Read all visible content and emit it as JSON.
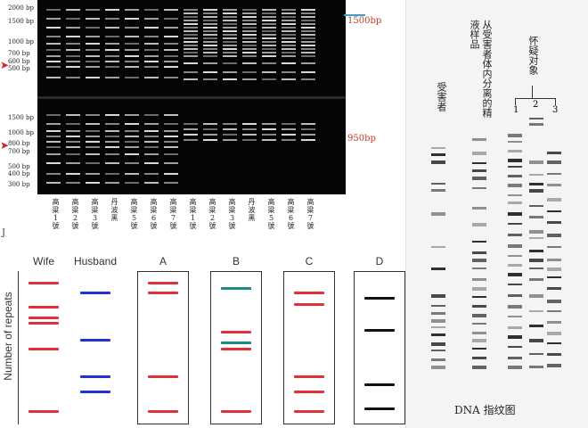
{
  "gel": {
    "size_labels_top": [
      "2000 bp",
      "1500 bp",
      "1000 bp",
      "700 bp",
      "600 bp",
      "500 bp"
    ],
    "size_labels_bottom": [
      "1500 bp",
      "1000 bp",
      "800 bp",
      "700 bp",
      "500 bp",
      "400 bp",
      "300 bp"
    ],
    "marker_top": "1500bp",
    "marker_bottom": "950bp",
    "lane_labels": [
      "高粱1號",
      "高粱2號",
      "高粱3號",
      "丹波黑",
      "高粱5號",
      "高粱6號",
      "高粱7號",
      "高粱1號",
      "高粱2號",
      "高粱3號",
      "丹波黑",
      "高粱5號",
      "高粱6號",
      "高粱7號"
    ],
    "corner_mark": "J"
  },
  "fingerprint": {
    "label_victim": "受害者",
    "label_sample": "从受害者体内分离的精液样品",
    "label_suspects": "怀疑对象",
    "suspect_numbers": [
      "1",
      "2",
      "3"
    ],
    "caption": "DNA 指纹图"
  },
  "repeats": {
    "ylabel": "Number of repeats",
    "columns": [
      {
        "name": "Wife",
        "color": "#e0303a",
        "bands": [
          0.04,
          0.21,
          0.29,
          0.33,
          0.51,
          0.96
        ]
      },
      {
        "name": "Husband",
        "color": "#2430d8",
        "bands": [
          0.11,
          0.45,
          0.71,
          0.82
        ]
      },
      {
        "name": "A",
        "color": "#e0303a",
        "bands": [
          0.04,
          0.11,
          0.71,
          0.96
        ]
      },
      {
        "name": "B",
        "color": "#e0303a",
        "bands": [
          0.08,
          0.39,
          0.51,
          0.96
        ],
        "alt_color": "#1e8c85",
        "alt_bands": [
          0.08,
          0.47
        ]
      },
      {
        "name": "C",
        "color": "#e0303a",
        "bands": [
          0.11,
          0.19,
          0.71,
          0.82,
          0.96
        ]
      },
      {
        "name": "D",
        "color": "#111111",
        "bands": [
          0.15,
          0.38,
          0.77,
          0.94
        ]
      }
    ]
  }
}
